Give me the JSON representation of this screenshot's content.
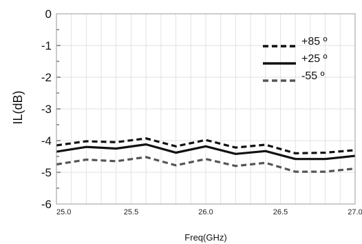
{
  "chart_data": {
    "type": "line",
    "title": "",
    "xlabel": "Freq(GHz)",
    "ylabel": "IL(dB)",
    "xlim": [
      25.0,
      27.0
    ],
    "ylim": [
      -6,
      0
    ],
    "xticks": [
      "25.0",
      "25.5",
      "26.0",
      "26.5",
      "27.0"
    ],
    "yticks": [
      "0",
      "-1",
      "-2",
      "-3",
      "-4",
      "-5",
      "-6"
    ],
    "grid": true,
    "legend_position": "top-right",
    "x": [
      25.0,
      25.2,
      25.4,
      25.6,
      25.8,
      26.0,
      26.2,
      26.4,
      26.6,
      26.8,
      27.0
    ],
    "series": [
      {
        "name": "+85 º",
        "style": "dashed",
        "color": "#111111",
        "values": [
          -4.15,
          -4.02,
          -4.05,
          -3.93,
          -4.18,
          -3.98,
          -4.22,
          -4.13,
          -4.4,
          -4.38,
          -4.3
        ]
      },
      {
        "name": "+25 º",
        "style": "solid",
        "color": "#111111",
        "values": [
          -4.35,
          -4.2,
          -4.25,
          -4.12,
          -4.38,
          -4.18,
          -4.42,
          -4.33,
          -4.58,
          -4.58,
          -4.48
        ]
      },
      {
        "name": "-55 º",
        "style": "dashed",
        "color": "#555555",
        "values": [
          -4.75,
          -4.6,
          -4.65,
          -4.52,
          -4.78,
          -4.58,
          -4.8,
          -4.7,
          -4.98,
          -4.98,
          -4.88
        ]
      }
    ]
  }
}
